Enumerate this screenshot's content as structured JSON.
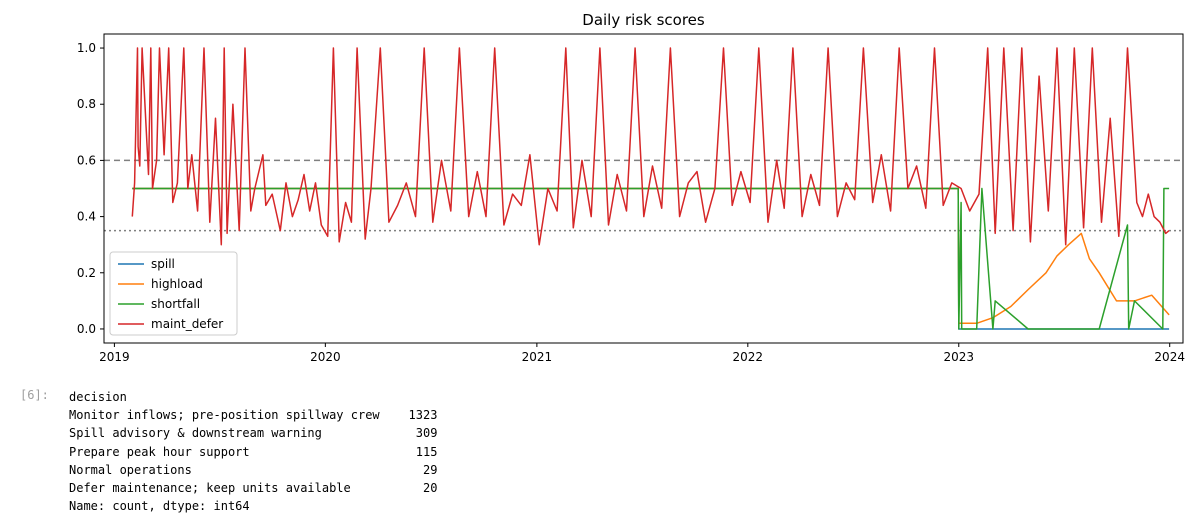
{
  "chart_data": {
    "type": "line",
    "title": "Daily risk scores",
    "xlabel": "",
    "ylabel": "",
    "x_ticks": [
      "2019",
      "2020",
      "2021",
      "2022",
      "2023",
      "2024"
    ],
    "y_ticks": [
      "0.0",
      "0.2",
      "0.4",
      "0.6",
      "0.8",
      "1.0"
    ],
    "xlim": [
      "2018-12-14",
      "2024-01-24"
    ],
    "ylim": [
      -0.05,
      1.05
    ],
    "grid": false,
    "legend_position": "lower left",
    "reference_lines": [
      {
        "y": 0.6,
        "style": "dashed",
        "color": "#808080"
      },
      {
        "y": 0.35,
        "style": "dotted",
        "color": "#808080"
      }
    ],
    "series": [
      {
        "name": "spill",
        "color": "#1f77b4",
        "style": "solid",
        "x": [
          "2019-02-01",
          "2022-12-31",
          "2023-01-01",
          "2023-12-31"
        ],
        "y": [
          0.5,
          0.5,
          0.0,
          0.0
        ]
      },
      {
        "name": "highload",
        "color": "#ff7f0e",
        "style": "solid",
        "x": [
          "2019-02-01",
          "2022-12-31",
          "2023-01-01",
          "2023-02-01",
          "2023-03-01",
          "2023-04-01",
          "2023-05-01",
          "2023-06-01",
          "2023-06-20",
          "2023-07-10",
          "2023-08-01",
          "2023-08-15",
          "2023-09-01",
          "2023-10-01",
          "2023-11-01",
          "2023-12-01",
          "2023-12-31"
        ],
        "y": [
          0.5,
          0.5,
          0.02,
          0.02,
          0.04,
          0.08,
          0.14,
          0.2,
          0.26,
          0.3,
          0.34,
          0.25,
          0.2,
          0.1,
          0.1,
          0.12,
          0.05
        ]
      },
      {
        "name": "shortfall",
        "color": "#2ca02c",
        "style": "solid",
        "x": [
          "2019-02-01",
          "2022-12-31",
          "2023-01-01",
          "2023-01-05",
          "2023-01-06",
          "2023-02-01",
          "2023-02-10",
          "2023-03-01",
          "2023-03-05",
          "2023-05-01",
          "2023-07-01",
          "2023-09-01",
          "2023-10-20",
          "2023-10-22",
          "2023-11-01",
          "2023-12-20",
          "2023-12-22",
          "2023-12-31"
        ],
        "y": [
          0.5,
          0.5,
          0.0,
          0.45,
          0.0,
          0.0,
          0.5,
          0.0,
          0.1,
          0.0,
          0.0,
          0.0,
          0.37,
          0.0,
          0.1,
          0.0,
          0.5,
          0.5
        ]
      },
      {
        "name": "maint_defer",
        "color": "#d62728",
        "style": "solid",
        "x": [
          "2019-02-01",
          "2019-02-05",
          "2019-02-10",
          "2019-02-11",
          "2019-02-14",
          "2019-02-18",
          "2019-03-01",
          "2019-03-05",
          "2019-03-08",
          "2019-03-15",
          "2019-03-20",
          "2019-03-28",
          "2019-04-05",
          "2019-04-12",
          "2019-04-20",
          "2019-05-01",
          "2019-05-08",
          "2019-05-15",
          "2019-05-25",
          "2019-06-05",
          "2019-06-15",
          "2019-06-25",
          "2019-07-05",
          "2019-07-10",
          "2019-07-15",
          "2019-07-25",
          "2019-08-05",
          "2019-08-15",
          "2019-08-25",
          "2019-09-01",
          "2019-09-15",
          "2019-09-20",
          "2019-10-01",
          "2019-10-15",
          "2019-10-25",
          "2019-11-05",
          "2019-11-15",
          "2019-11-25",
          "2019-12-05",
          "2019-12-15",
          "2019-12-25",
          "2020-01-05",
          "2020-01-15",
          "2020-01-25",
          "2020-02-05",
          "2020-02-15",
          "2020-02-25",
          "2020-03-10",
          "2020-03-20",
          "2020-04-05",
          "2020-04-20",
          "2020-05-05",
          "2020-05-20",
          "2020-06-05",
          "2020-06-20",
          "2020-07-05",
          "2020-07-20",
          "2020-08-05",
          "2020-08-20",
          "2020-09-05",
          "2020-09-20",
          "2020-10-05",
          "2020-10-20",
          "2020-11-05",
          "2020-11-20",
          "2020-12-05",
          "2020-12-20",
          "2021-01-05",
          "2021-01-20",
          "2021-02-05",
          "2021-02-20",
          "2021-03-05",
          "2021-03-20",
          "2021-04-05",
          "2021-04-20",
          "2021-05-05",
          "2021-05-20",
          "2021-06-05",
          "2021-06-20",
          "2021-07-05",
          "2021-07-20",
          "2021-08-05",
          "2021-08-20",
          "2021-09-05",
          "2021-09-20",
          "2021-10-05",
          "2021-10-20",
          "2021-11-05",
          "2021-11-20",
          "2021-12-05",
          "2021-12-20",
          "2022-01-05",
          "2022-01-20",
          "2022-02-05",
          "2022-02-20",
          "2022-03-05",
          "2022-03-20",
          "2022-04-05",
          "2022-04-20",
          "2022-05-05",
          "2022-05-20",
          "2022-06-05",
          "2022-06-20",
          "2022-07-05",
          "2022-07-20",
          "2022-08-05",
          "2022-08-20",
          "2022-09-05",
          "2022-09-20",
          "2022-10-05",
          "2022-10-20",
          "2022-11-05",
          "2022-11-20",
          "2022-12-05",
          "2022-12-20",
          "2023-01-05",
          "2023-01-20",
          "2023-02-05",
          "2023-02-20",
          "2023-03-05",
          "2023-03-20",
          "2023-04-05",
          "2023-04-20",
          "2023-05-05",
          "2023-05-20",
          "2023-06-05",
          "2023-06-20",
          "2023-07-05",
          "2023-07-20",
          "2023-08-05",
          "2023-08-20",
          "2023-09-05",
          "2023-09-20",
          "2023-10-05",
          "2023-10-20",
          "2023-11-05",
          "2023-11-15",
          "2023-11-25",
          "2023-12-05",
          "2023-12-15",
          "2023-12-25",
          "2023-12-31"
        ],
        "y": [
          0.4,
          0.52,
          1.0,
          0.65,
          0.58,
          1.0,
          0.55,
          1.0,
          0.5,
          0.6,
          1.0,
          0.62,
          1.0,
          0.45,
          0.52,
          1.0,
          0.5,
          0.62,
          0.42,
          1.0,
          0.38,
          0.75,
          0.3,
          1.0,
          0.34,
          0.8,
          0.35,
          1.0,
          0.42,
          0.5,
          0.62,
          0.44,
          0.48,
          0.35,
          0.52,
          0.4,
          0.46,
          0.55,
          0.42,
          0.52,
          0.37,
          0.33,
          1.0,
          0.31,
          0.45,
          0.38,
          1.0,
          0.32,
          0.5,
          1.0,
          0.38,
          0.44,
          0.52,
          0.4,
          1.0,
          0.38,
          0.6,
          0.42,
          1.0,
          0.4,
          0.56,
          0.4,
          1.0,
          0.37,
          0.48,
          0.44,
          0.62,
          0.3,
          0.5,
          0.42,
          1.0,
          0.36,
          0.6,
          0.4,
          1.0,
          0.37,
          0.55,
          0.42,
          1.0,
          0.4,
          0.58,
          0.43,
          1.0,
          0.4,
          0.52,
          0.56,
          0.38,
          0.5,
          1.0,
          0.44,
          0.56,
          0.45,
          1.0,
          0.38,
          0.6,
          0.43,
          1.0,
          0.4,
          0.55,
          0.44,
          1.0,
          0.4,
          0.52,
          0.46,
          1.0,
          0.45,
          0.62,
          0.42,
          1.0,
          0.5,
          0.58,
          0.43,
          1.0,
          0.44,
          0.52,
          0.5,
          0.42,
          0.48,
          1.0,
          0.34,
          1.0,
          0.35,
          1.0,
          0.31,
          0.9,
          0.42,
          1.0,
          0.3,
          1.0,
          0.36,
          1.0,
          0.38,
          0.75,
          0.33,
          1.0,
          0.45,
          0.4,
          0.48,
          0.4,
          0.38,
          0.34,
          0.35
        ]
      }
    ]
  },
  "notebook": {
    "prompt": "[6]:",
    "output_lines": [
      "decision",
      "Monitor inflows; pre-position spillway crew    1323",
      "Spill advisory & downstream warning             309",
      "Prepare peak hour support                       115",
      "Normal operations                                29",
      "Defer maintenance; keep units available          20",
      "Name: count, dtype: int64"
    ]
  }
}
